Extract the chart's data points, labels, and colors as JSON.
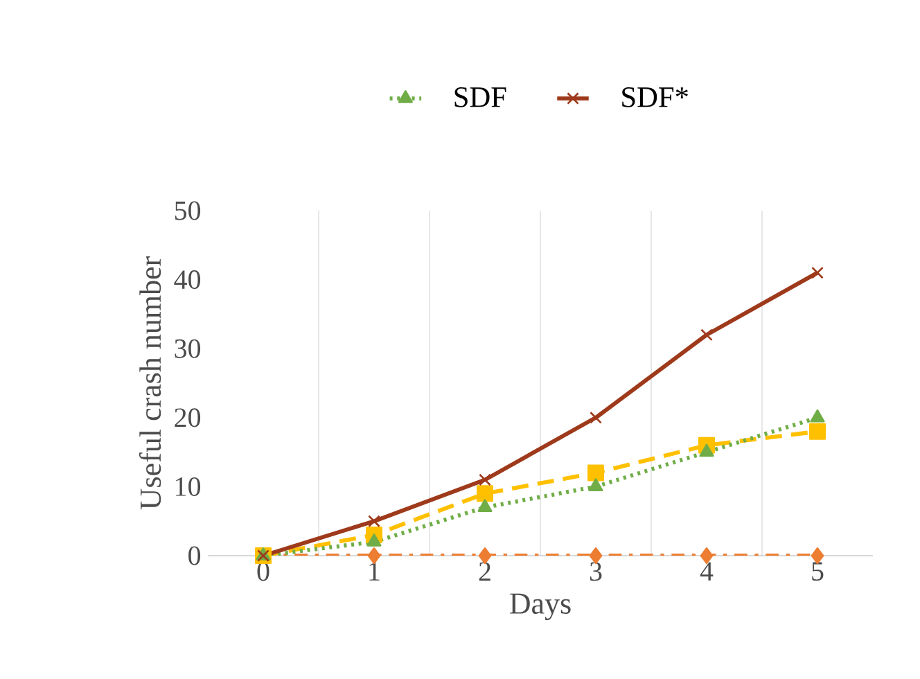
{
  "chart_data": {
    "type": "line",
    "xlabel": "Days",
    "ylabel": "Useful crash number",
    "categories": [
      "0",
      "1",
      "2",
      "3",
      "4",
      "5"
    ],
    "ylim": [
      0,
      50
    ],
    "yticks": [
      0,
      10,
      20,
      30,
      40,
      50
    ],
    "grid": "x",
    "legend": "top",
    "series": [
      {
        "color": "#ed7d31",
        "values": [
          0,
          0,
          0,
          0,
          0,
          0
        ],
        "marker": "diamond",
        "line_style": "dashdot"
      },
      {
        "color": "#ffc000",
        "values": [
          0,
          3,
          9,
          12,
          16,
          18
        ],
        "marker": "square",
        "line_style": "dashed"
      },
      {
        "name": "SDF",
        "color": "#70ad47",
        "values": [
          0,
          2,
          7,
          10,
          15,
          20
        ],
        "marker": "triangle",
        "line_style": "dotted"
      },
      {
        "name": "SDF*",
        "color": "#9e3a1b",
        "values": [
          0,
          5,
          11,
          20,
          32,
          41
        ],
        "marker": "cross",
        "line_style": "solid"
      }
    ]
  }
}
